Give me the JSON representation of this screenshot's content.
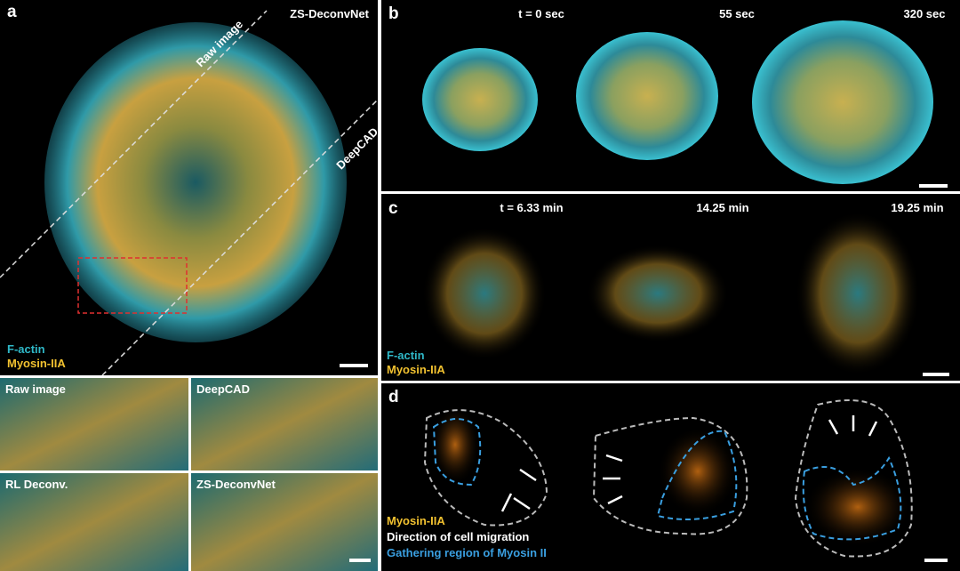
{
  "panel_a": {
    "label": "a",
    "method_right": "ZS-DeconvNet",
    "method_diag": "Raw image",
    "method_lower": "DeepCAD",
    "channel_1": "F-actin",
    "channel_2": "Myosin-IIA",
    "insets": [
      "Raw image",
      "DeepCAD",
      "RL Deconv.",
      "ZS-DeconvNet"
    ]
  },
  "panel_b": {
    "label": "b",
    "times": [
      "t = 0 sec",
      "55 sec",
      "320 sec"
    ]
  },
  "panel_c": {
    "label": "c",
    "times": [
      "t = 6.33 min",
      "14.25 min",
      "19.25 min"
    ],
    "channel_1": "F-actin",
    "channel_2": "Myosin-IIA"
  },
  "panel_d": {
    "label": "d",
    "legend_1": "Myosin-IIA",
    "legend_2": "Direction of cell migration",
    "legend_3": "Gathering region of Myosin II"
  }
}
